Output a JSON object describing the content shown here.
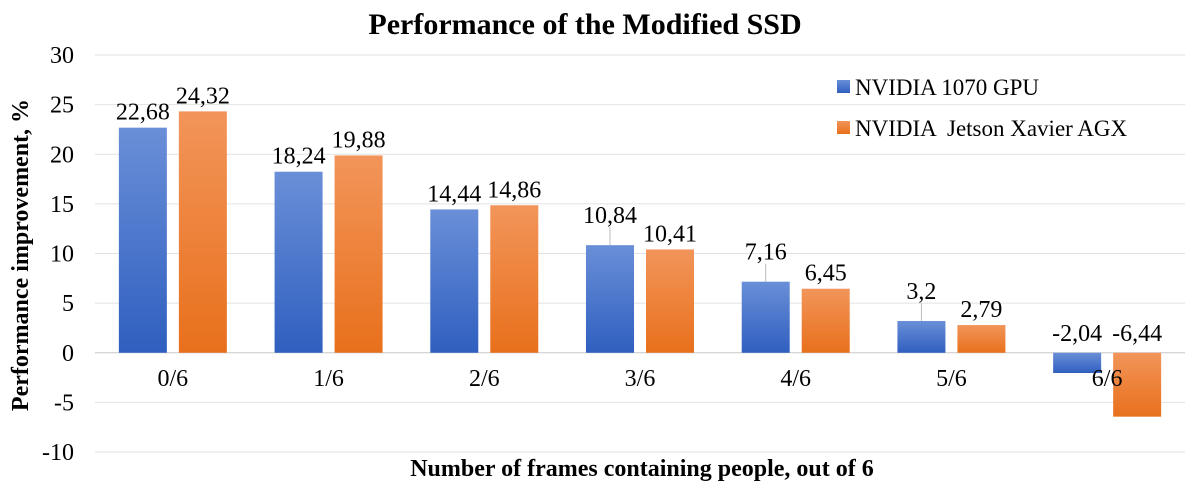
{
  "chart_data": {
    "type": "bar",
    "title": "Performance of the Modified SSD",
    "xlabel": "Number of frames containing people, out of 6",
    "ylabel": "Performance improvement, %",
    "categories": [
      "0/6",
      "1/6",
      "2/6",
      "3/6",
      "4/6",
      "5/6",
      "6/6"
    ],
    "ylim": [
      -10,
      30
    ],
    "ytick_step": 5,
    "ytick_labels": [
      "-10",
      "-5",
      "0",
      "5",
      "10",
      "15",
      "20",
      "25",
      "30"
    ],
    "grid": true,
    "legend_position": "top-right",
    "series": [
      {
        "name": "NVIDIA 1070 GPU",
        "values": [
          22.68,
          18.24,
          14.44,
          10.84,
          7.16,
          3.2,
          -2.04
        ],
        "labels": [
          "22,68",
          "18,24",
          "14,44",
          "10,84",
          "7,16",
          "3,2",
          "-2,04"
        ],
        "color_top": "#6a8fd8",
        "color_bottom": "#2f5fbf"
      },
      {
        "name": "NVIDIA  Jetson Xavier AGX",
        "values": [
          24.32,
          19.88,
          14.86,
          10.41,
          6.45,
          2.79,
          -6.44
        ],
        "labels": [
          "24,32",
          "19,88",
          "14,86",
          "10,41",
          "6,45",
          "2,79",
          "-6,44"
        ],
        "color_top": "#f2955a",
        "color_bottom": "#e8701c"
      }
    ]
  }
}
